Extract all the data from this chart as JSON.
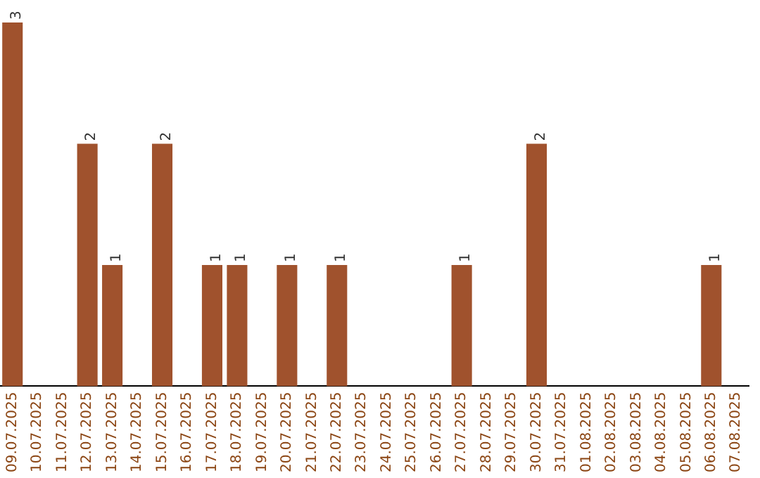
{
  "chart_data": {
    "type": "bar",
    "categories": [
      "09.07.2025",
      "10.07.2025",
      "11.07.2025",
      "12.07.2025",
      "13.07.2025",
      "14.07.2025",
      "15.07.2025",
      "16.07.2025",
      "17.07.2025",
      "18.07.2025",
      "19.07.2025",
      "20.07.2025",
      "21.07.2025",
      "22.07.2025",
      "23.07.2025",
      "24.07.2025",
      "25.07.2025",
      "26.07.2025",
      "27.07.2025",
      "28.07.2025",
      "29.07.2025",
      "30.07.2025",
      "31.07.2025",
      "01.08.2025",
      "02.08.2025",
      "03.08.2025",
      "04.08.2025",
      "05.08.2025",
      "06.08.2025",
      "07.08.2025"
    ],
    "values": [
      3,
      0,
      0,
      2,
      1,
      0,
      2,
      0,
      1,
      1,
      0,
      1,
      0,
      1,
      0,
      0,
      0,
      0,
      1,
      0,
      0,
      2,
      0,
      0,
      0,
      0,
      0,
      0,
      1,
      0
    ],
    "value_labels": [
      "3",
      null,
      null,
      "2",
      "1",
      null,
      "2",
      null,
      "1",
      "1",
      null,
      "1",
      null,
      "1",
      null,
      null,
      null,
      null,
      "1",
      null,
      null,
      "2",
      null,
      null,
      null,
      null,
      null,
      null,
      "1",
      null
    ],
    "color": "#a0522d",
    "tick_labels": "x",
    "grid": false,
    "legend": false
  }
}
